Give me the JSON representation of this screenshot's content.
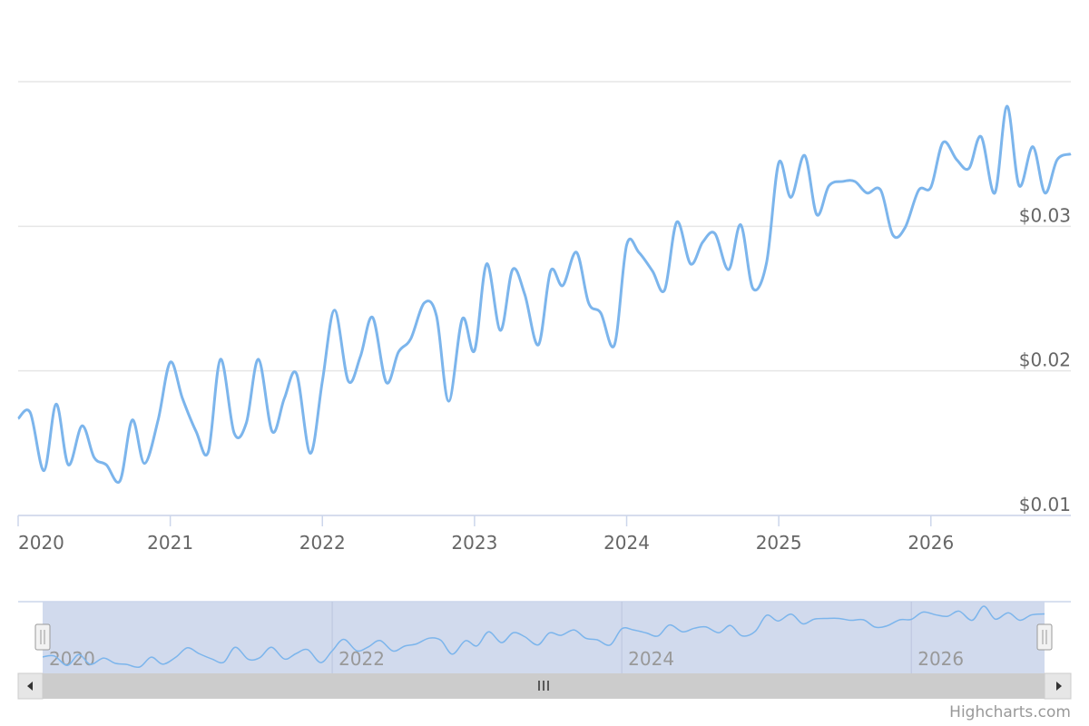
{
  "chart_data": {
    "type": "line",
    "x": [
      2020,
      2020.08,
      2020.17,
      2020.25,
      2020.33,
      2020.42,
      2020.5,
      2020.58,
      2020.67,
      2020.75,
      2020.83,
      2020.92,
      2021,
      2021.08,
      2021.17,
      2021.25,
      2021.33,
      2021.42,
      2021.5,
      2021.58,
      2021.67,
      2021.75,
      2021.83,
      2021.92,
      2022,
      2022.08,
      2022.17,
      2022.25,
      2022.33,
      2022.42,
      2022.5,
      2022.58,
      2022.67,
      2022.75,
      2022.83,
      2022.92,
      2023,
      2023.08,
      2023.17,
      2023.25,
      2023.33,
      2023.42,
      2023.5,
      2023.58,
      2023.67,
      2023.75,
      2023.83,
      2023.92,
      2024,
      2024.08,
      2024.17,
      2024.25,
      2024.33,
      2024.42,
      2024.5,
      2024.58,
      2024.67,
      2024.75,
      2024.83,
      2024.92,
      2025,
      2025.08,
      2025.17,
      2025.25,
      2025.33,
      2025.42,
      2025.5,
      2025.58,
      2025.67,
      2025.75,
      2025.83,
      2025.92,
      2026,
      2026.08,
      2026.17,
      2026.25,
      2026.33,
      2026.42,
      2026.5,
      2026.58,
      2026.67,
      2026.75,
      2026.83,
      2026.92
    ],
    "series": [
      {
        "color": "#7cb5ec",
        "values": [
          0.0167,
          0.0171,
          0.0131,
          0.0177,
          0.0135,
          0.0162,
          0.014,
          0.0135,
          0.0124,
          0.0166,
          0.0136,
          0.0166,
          0.0206,
          0.0181,
          0.0158,
          0.0144,
          0.0208,
          0.0157,
          0.0164,
          0.0208,
          0.0158,
          0.0181,
          0.0198,
          0.0143,
          0.0193,
          0.0242,
          0.0193,
          0.021,
          0.0237,
          0.0192,
          0.0213,
          0.0222,
          0.0247,
          0.0238,
          0.0179,
          0.0236,
          0.0214,
          0.0274,
          0.0228,
          0.027,
          0.0253,
          0.0218,
          0.0269,
          0.0259,
          0.0282,
          0.0247,
          0.024,
          0.0218,
          0.0287,
          0.0282,
          0.0269,
          0.0256,
          0.0303,
          0.0274,
          0.0289,
          0.0295,
          0.027,
          0.0301,
          0.0257,
          0.0275,
          0.0344,
          0.032,
          0.0349,
          0.0308,
          0.0328,
          0.0331,
          0.0331,
          0.0323,
          0.0325,
          0.0294,
          0.0299,
          0.0325,
          0.0327,
          0.0358,
          0.0346,
          0.034,
          0.0362,
          0.0323,
          0.0383,
          0.0328,
          0.0355,
          0.0323,
          0.0346,
          0.035
        ]
      }
    ],
    "xlim": [
      2020,
      2026.92
    ],
    "xticks": [
      2020,
      2021,
      2022,
      2023,
      2024,
      2025,
      2026
    ],
    "ylim": [
      0.01,
      0.04
    ],
    "yticks": [
      {
        "value": 0.01,
        "label": "$0.01"
      },
      {
        "value": 0.02,
        "label": "$0.02"
      },
      {
        "value": 0.03,
        "label": "$0.03"
      }
    ],
    "grid": true,
    "navigator": {
      "xticks": [
        2020,
        2022,
        2024,
        2026
      ]
    },
    "credits": "Highcharts.com"
  }
}
